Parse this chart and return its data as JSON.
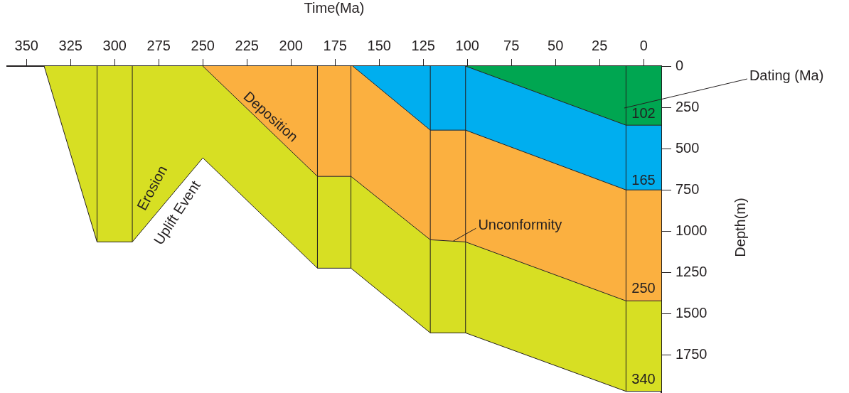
{
  "chart_data": {
    "type": "area",
    "xlabel": "Time(Ma)",
    "ylabel": "Depth(m)",
    "xlim": [
      361,
      -10
    ],
    "xticks": [
      350,
      325,
      300,
      275,
      250,
      225,
      200,
      175,
      150,
      125,
      100,
      75,
      50,
      25,
      0
    ],
    "ylim": [
      1980,
      0
    ],
    "yticks": [
      0,
      250,
      500,
      750,
      1000,
      1250,
      1500,
      1750
    ],
    "series": [
      {
        "color": "#d7df23",
        "x": [
          340,
          310,
          290,
          250,
          185,
          166,
          121,
          101,
          10,
          -10
        ],
        "values": [
          0,
          1065,
          1065,
          556,
          1224,
          1224,
          1616,
          1616,
          1970,
          1970
        ]
      },
      {
        "color": "#fbb040",
        "x": [
          250,
          185,
          166,
          121,
          101,
          10,
          -10
        ],
        "values": [
          0,
          668,
          668,
          1052,
          1065,
          1422,
          1422
        ]
      },
      {
        "color": "#00aeef",
        "x": [
          165,
          121,
          101,
          10,
          -10
        ],
        "values": [
          0,
          388,
          388,
          750,
          750
        ]
      },
      {
        "color": "#00a651",
        "x": [
          101,
          10,
          -10
        ],
        "values": [
          0,
          358,
          358
        ]
      }
    ],
    "ref_lines": [
      {
        "axis": "x",
        "value": 310
      },
      {
        "axis": "x",
        "value": 290
      },
      {
        "axis": "x",
        "value": 185
      },
      {
        "axis": "x",
        "value": 166
      },
      {
        "axis": "x",
        "value": 121
      },
      {
        "axis": "x",
        "value": 101
      },
      {
        "axis": "x",
        "value": 10
      }
    ],
    "annotations": [
      "Erosion",
      "Uplift Event",
      "Deposition",
      {
        "text": "Unconformity",
        "x": 108,
        "y": 1060
      },
      {
        "text": "Dating (Ma)",
        "x": 11,
        "y": 254
      },
      "102",
      "165",
      "250",
      "340"
    ]
  }
}
